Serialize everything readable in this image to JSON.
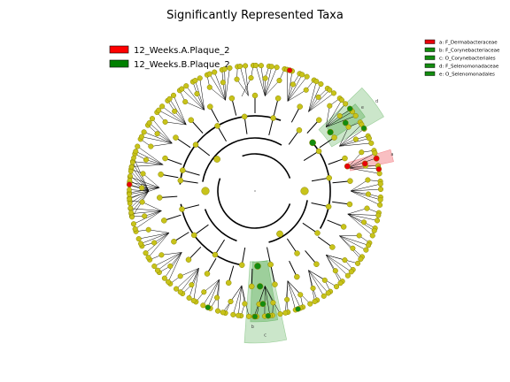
{
  "figure": {
    "title": "Significantly Represented Taxa"
  },
  "colors": {
    "neutral_node": "#c8c31a",
    "neutral_edge": "#8a8600",
    "group_a": "#e8000b",
    "group_b": "#128c0f",
    "branch": "#000000"
  },
  "groups": [
    {
      "label": "12_Weeks.A.Plaque_2",
      "color": "#ff0000"
    },
    {
      "label": "12_Weeks.B.Plaque_2",
      "color": "#008000"
    }
  ],
  "clade_legend": [
    {
      "text": "a: F_Dermabacteraceae",
      "color": "#e8000b"
    },
    {
      "text": "b: F_Corynebacteriaceae",
      "color": "#128c0f"
    },
    {
      "text": "c: O_Corynebacteriales",
      "color": "#128c0f"
    },
    {
      "text": "d: F_Selenomonadaceae",
      "color": "#128c0f"
    },
    {
      "text": "e: O_Selenomonadales",
      "color": "#128c0f"
    }
  ],
  "clade_labels": [
    "a",
    "b",
    "c",
    "d",
    "e"
  ]
}
